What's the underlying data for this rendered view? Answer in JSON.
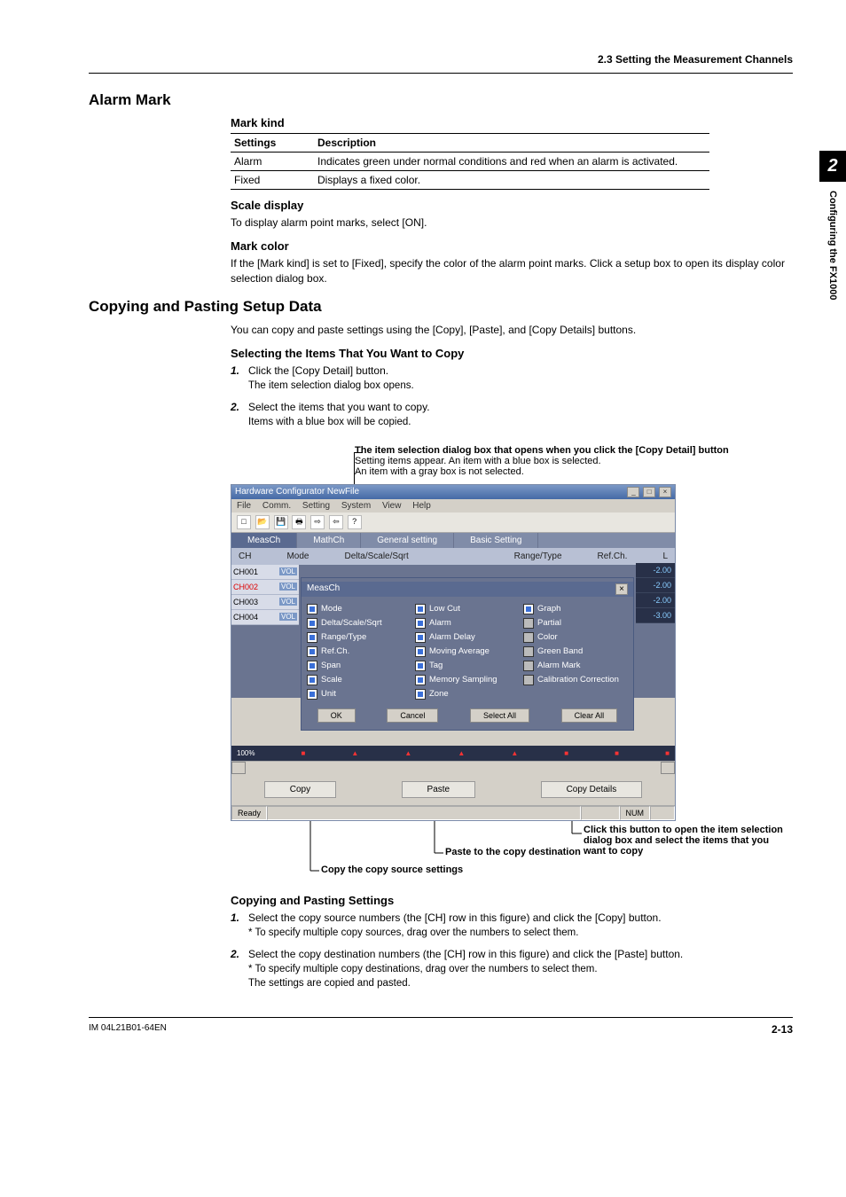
{
  "breadcrumb": "2.3  Setting the Measurement Channels",
  "sideTab": {
    "num": "2",
    "text": "Configuring the FX1000"
  },
  "alarmMark": {
    "title": "Alarm Mark",
    "markKind": {
      "heading": "Mark kind",
      "header": {
        "c1": "Settings",
        "c2": "Description"
      },
      "rows": [
        {
          "c1": "Alarm",
          "c2": "Indicates green under normal conditions and red when an alarm is activated."
        },
        {
          "c1": "Fixed",
          "c2": "Displays a fixed color."
        }
      ]
    },
    "scaleDisplay": {
      "heading": "Scale display",
      "body": "To display alarm point marks, select [ON]."
    },
    "markColor": {
      "heading": "Mark color",
      "body": "If the [Mark kind] is set to [Fixed], specify the color of the alarm point marks. Click a setup box to open its display color selection dialog box."
    }
  },
  "copySection": {
    "title": "Copying and Pasting Setup Data",
    "intro": "You can copy and paste settings using the [Copy], [Paste], and [Copy Details] buttons.",
    "selectHeading": "Selecting the Items That You Want to Copy",
    "steps": [
      {
        "n": "1.",
        "t": "Click the [Copy Detail] button.",
        "sub": "The item selection dialog box opens."
      },
      {
        "n": "2.",
        "t": "Select the items that you want to copy.",
        "sub": "Items with a blue box will be copied."
      }
    ],
    "calloutTitle": "The item selection dialog box that opens when you click the [Copy Detail] button",
    "calloutLine1": "Setting items appear. An item with a blue box is selected.",
    "calloutLine2": "An item with a gray box is not selected.",
    "annot": {
      "copyDetails": "Click this button to open the item selection dialog box and select the items that you want to copy",
      "paste": "Paste to the copy destination",
      "copy": "Copy the copy source settings"
    },
    "pasteHeading": "Copying and Pasting Settings",
    "pasteSteps": [
      {
        "n": "1.",
        "t": "Select the copy source numbers (the [CH] row in this figure) and click the [Copy] button.",
        "sub": "*   To specify multiple copy sources, drag over the numbers to select them."
      },
      {
        "n": "2.",
        "t": "Select the copy destination numbers (the [CH] row in this figure) and click the [Paste] button.",
        "sub1": "*   To specify multiple copy destinations, drag over the numbers to select them.",
        "sub2": "The settings are copied and pasted."
      }
    ]
  },
  "app": {
    "title": "Hardware Configurator  NewFile",
    "menubar": [
      "File",
      "Comm.",
      "Setting",
      "System",
      "View",
      "Help"
    ],
    "tabs": [
      "MeasCh",
      "MathCh",
      "General setting",
      "Basic Setting"
    ],
    "subtabs": {
      "c1": "CH",
      "c2": "Mode",
      "c3": "Delta/Scale/Sqrt",
      "c4": "Range/Type",
      "c5": "Ref.Ch.",
      "c6": "L"
    },
    "channels": [
      {
        "ch": "CH001",
        "red": false
      },
      {
        "ch": "CH002",
        "red": true
      },
      {
        "ch": "CH003",
        "red": false
      },
      {
        "ch": "CH004",
        "red": false
      }
    ],
    "volt": "VOL",
    "dialogTitle": "MeasCh",
    "checkCols": [
      [
        {
          "l": "Mode",
          "on": true
        },
        {
          "l": "Delta/Scale/Sqrt",
          "on": true
        },
        {
          "l": "Range/Type",
          "on": true
        },
        {
          "l": "Ref.Ch.",
          "on": true
        },
        {
          "l": "Span",
          "on": true
        },
        {
          "l": "Scale",
          "on": true
        },
        {
          "l": "Unit",
          "on": true
        }
      ],
      [
        {
          "l": "Low Cut",
          "on": true
        },
        {
          "l": "Alarm",
          "on": true
        },
        {
          "l": "Alarm Delay",
          "on": true
        },
        {
          "l": "Moving Average",
          "on": true
        },
        {
          "l": "Tag",
          "on": true
        },
        {
          "l": "Memory Sampling",
          "on": true
        },
        {
          "l": "Zone",
          "on": true
        }
      ],
      [
        {
          "l": "Graph",
          "on": true
        },
        {
          "l": "Partial",
          "on": false
        },
        {
          "l": "Color",
          "on": false
        },
        {
          "l": "Green Band",
          "on": false
        },
        {
          "l": "Alarm Mark",
          "on": false
        },
        {
          "l": "Calibration Correction",
          "on": false
        }
      ]
    ],
    "dialogBtns": [
      "OK",
      "Cancel",
      "Select All",
      "Clear All"
    ],
    "rightVals": [
      "-2.00",
      "-2.00",
      "-2.00",
      "-3.00"
    ],
    "botBtns": [
      "Copy",
      "Paste",
      "Copy Details"
    ],
    "statusReady": "Ready",
    "statusNum": "NUM"
  },
  "footer": {
    "left": "IM 04L21B01-64EN",
    "right": "2-13"
  }
}
